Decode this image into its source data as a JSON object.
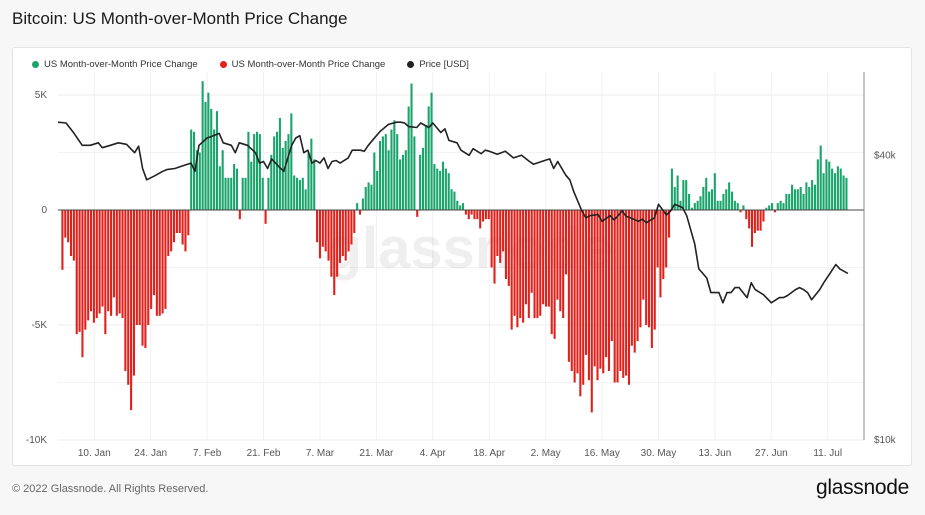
{
  "header": {
    "title": "Bitcoin: US Month-over-Month Price Change"
  },
  "footer": {
    "copyright": "© 2022 Glassnode. All Rights Reserved.",
    "brand": "glassnode"
  },
  "watermark": "glassnode",
  "colors": {
    "positive": "#1aa46c",
    "negative": "#e0201b",
    "price": "#222222"
  },
  "chart_data": {
    "type": "bar",
    "title": "Bitcoin: US Month-over-Month Price Change",
    "legend_position": "top-left",
    "grid": true,
    "legend": [
      {
        "label": "US Month-over-Month Price Change",
        "color": "#1aa46c"
      },
      {
        "label": "US Month-over-Month Price Change",
        "color": "#e0201b"
      },
      {
        "label": "Price [USD]",
        "color": "#222222"
      }
    ],
    "x_ticks": [
      "10. Jan",
      "24. Jan",
      "7. Feb",
      "21. Feb",
      "7. Mar",
      "21. Mar",
      "4. Apr",
      "18. Apr",
      "2. May",
      "16. May",
      "30. May",
      "13. Jun",
      "27. Jun",
      "11. Jul"
    ],
    "x_tick_days": [
      9,
      23,
      37,
      51,
      65,
      79,
      93,
      107,
      121,
      135,
      149,
      163,
      177,
      191
    ],
    "x_range_days": [
      0,
      200
    ],
    "y_left": {
      "range": [
        -10000,
        6000
      ],
      "ticks": [
        5000,
        0,
        -5000,
        -10000
      ],
      "tick_labels": [
        "5K",
        "0",
        "-5K",
        "-10K"
      ]
    },
    "y_right": {
      "range_log": [
        10000,
        60000
      ],
      "ticks": [
        40000,
        10000
      ],
      "tick_labels": [
        "$40k",
        "$10k"
      ]
    },
    "series": [
      {
        "name": "US Month-over-Month Price Change",
        "type": "bar",
        "start_day": 0,
        "values": [
          -2600,
          -1200,
          -1400,
          -2000,
          -2200,
          -5400,
          -5300,
          -6400,
          -5200,
          -4800,
          -4400,
          -4900,
          -4700,
          -4500,
          -4200,
          -5400,
          -4400,
          -4600,
          -3800,
          -4600,
          -4500,
          -4700,
          -7000,
          -7600,
          -8700,
          -7200,
          -5000,
          -5000,
          -5900,
          -6000,
          -5000,
          -4300,
          -3700,
          -4600,
          -4600,
          -4500,
          -4300,
          -2000,
          -1800,
          -1400,
          -1000,
          -1000,
          -1500,
          -1800,
          -1100,
          3500,
          3400,
          2600,
          2500,
          5600,
          4700,
          5100,
          4400,
          3500,
          4300,
          1900,
          2600,
          1400,
          1400,
          1400,
          2000,
          1800,
          -400,
          1400,
          1400,
          3400,
          2100,
          3300,
          3400,
          3300,
          1400,
          -600,
          1400,
          2400,
          3200,
          3400,
          4000,
          2700,
          3000,
          3300,
          4200,
          1500,
          1400,
          1300,
          1400,
          900,
          2500,
          3100,
          2200,
          -1400,
          -2100,
          -1600,
          -1800,
          -2200,
          -2900,
          -3700,
          -2900,
          -2300,
          -2000,
          -2200,
          -1800,
          -1500,
          -1000,
          300,
          -200,
          500,
          1000,
          1200,
          1100,
          2500,
          1700,
          3000,
          3200,
          3300,
          2600,
          3500,
          3900,
          3300,
          2200,
          2400,
          2600,
          4500,
          5500,
          3200,
          -300,
          2400,
          2700,
          3700,
          4500,
          5100,
          2000,
          1800,
          1700,
          2100,
          1800,
          1600,
          900,
          800,
          400,
          200,
          300,
          -200,
          -400,
          -200,
          -400,
          -400,
          -800,
          -500,
          -400,
          -400,
          -2500,
          -3200,
          -2000,
          -2300,
          -1800,
          -3000,
          -3300,
          -5200,
          -4600,
          -5100,
          -4700,
          -4900,
          -4100,
          -4700,
          -3600,
          -4700,
          -4700,
          -4600,
          -4100,
          -4200,
          -4200,
          -5400,
          -5600,
          -3900,
          -4400,
          -4700,
          -2800,
          -6600,
          -7000,
          -7500,
          -7100,
          -8100,
          -7600,
          -6300,
          -7400,
          -8800,
          -6800,
          -7400,
          -6900,
          -7100,
          -6400,
          -7000,
          -5700,
          -7500,
          -7500,
          -7000,
          -7300,
          -7200,
          -7600,
          -5900,
          -6200,
          -5700,
          -5100,
          -3900,
          -5000,
          -5100,
          -6000,
          -5200,
          -2500,
          -3800,
          -3000,
          -2500,
          -1200,
          1800,
          1000,
          1500,
          400,
          1300,
          1300,
          700,
          100,
          300,
          400,
          600,
          1000,
          1400,
          800,
          900,
          1600,
          400,
          400,
          700,
          900,
          1200,
          800,
          400,
          300,
          -100,
          200,
          -400,
          -800,
          -1600,
          -1000,
          -900,
          -900,
          -500,
          100,
          200,
          300,
          -100,
          300,
          400,
          300,
          700,
          700,
          1100,
          900,
          900,
          1000,
          700,
          1200,
          1000,
          1300,
          1100,
          2200,
          2800,
          1600,
          2200,
          2100,
          1800,
          1600,
          1900,
          1800,
          1500,
          1400
        ]
      },
      {
        "name": "Price [USD]",
        "type": "line",
        "points": [
          [
            0,
            47000
          ],
          [
            2,
            46800
          ],
          [
            4,
            44500
          ],
          [
            6,
            42000
          ],
          [
            8,
            42000
          ],
          [
            10,
            42500
          ],
          [
            11,
            41500
          ],
          [
            13,
            42000
          ],
          [
            15,
            42500
          ],
          [
            17,
            42200
          ],
          [
            19,
            40500
          ],
          [
            20,
            41800
          ],
          [
            21,
            37500
          ],
          [
            22,
            35500
          ],
          [
            24,
            36200
          ],
          [
            26,
            37000
          ],
          [
            27,
            37300
          ],
          [
            29,
            37500
          ],
          [
            31,
            38000
          ],
          [
            33,
            38500
          ],
          [
            34,
            37000
          ],
          [
            35,
            42000
          ],
          [
            37,
            43500
          ],
          [
            38,
            43800
          ],
          [
            40,
            44500
          ],
          [
            41,
            42500
          ],
          [
            43,
            42000
          ],
          [
            44,
            40500
          ],
          [
            45,
            42500
          ],
          [
            47,
            42000
          ],
          [
            49,
            40500
          ],
          [
            50,
            38500
          ],
          [
            51,
            38800
          ],
          [
            52,
            37500
          ],
          [
            53,
            39300
          ],
          [
            54,
            38500
          ],
          [
            55,
            37700
          ],
          [
            56,
            37000
          ],
          [
            58,
            42000
          ],
          [
            59,
            43500
          ],
          [
            60,
            44000
          ],
          [
            61,
            40500
          ],
          [
            62,
            41000
          ],
          [
            63,
            38500
          ],
          [
            64,
            39000
          ],
          [
            65,
            38500
          ],
          [
            66,
            39500
          ],
          [
            67,
            37500
          ],
          [
            68,
            38800
          ],
          [
            69,
            39000
          ],
          [
            70,
            38500
          ],
          [
            72,
            39500
          ],
          [
            73,
            41000
          ],
          [
            75,
            41000
          ],
          [
            76,
            40800
          ],
          [
            77,
            42000
          ],
          [
            79,
            44000
          ],
          [
            80,
            45000
          ],
          [
            82,
            46500
          ],
          [
            84,
            47000
          ],
          [
            85,
            47000
          ],
          [
            86,
            46800
          ],
          [
            87,
            46000
          ],
          [
            89,
            45800
          ],
          [
            90,
            46800
          ],
          [
            92,
            45800
          ],
          [
            93,
            46800
          ],
          [
            95,
            44700
          ],
          [
            96,
            45500
          ],
          [
            97,
            43000
          ],
          [
            99,
            42500
          ],
          [
            100,
            41000
          ],
          [
            102,
            40000
          ],
          [
            103,
            41300
          ],
          [
            105,
            40300
          ],
          [
            106,
            41000
          ],
          [
            107,
            40800
          ],
          [
            109,
            40200
          ],
          [
            111,
            40800
          ],
          [
            113,
            39500
          ],
          [
            115,
            40000
          ],
          [
            117,
            38800
          ],
          [
            118,
            38300
          ],
          [
            120,
            38800
          ],
          [
            122,
            39300
          ],
          [
            123,
            37500
          ],
          [
            124,
            38800
          ],
          [
            126,
            36300
          ],
          [
            127,
            35500
          ],
          [
            128,
            33500
          ],
          [
            130,
            30500
          ],
          [
            131,
            29500
          ],
          [
            132,
            29800
          ],
          [
            134,
            30000
          ],
          [
            135,
            29000
          ],
          [
            137,
            29800
          ],
          [
            138,
            29200
          ],
          [
            140,
            30500
          ],
          [
            141,
            29700
          ],
          [
            142,
            29500
          ],
          [
            144,
            29000
          ],
          [
            145,
            29300
          ],
          [
            146,
            28800
          ],
          [
            148,
            29500
          ],
          [
            149,
            31500
          ],
          [
            151,
            29900
          ],
          [
            152,
            30500
          ],
          [
            153,
            31500
          ],
          [
            155,
            31000
          ],
          [
            156,
            29800
          ],
          [
            158,
            26000
          ],
          [
            159,
            23000
          ],
          [
            160,
            22500
          ],
          [
            161,
            22000
          ],
          [
            162,
            20500
          ],
          [
            163,
            20500
          ],
          [
            164,
            20500
          ],
          [
            165,
            19500
          ],
          [
            166,
            20500
          ],
          [
            167,
            20500
          ],
          [
            168,
            21000
          ],
          [
            169,
            21000
          ],
          [
            171,
            20000
          ],
          [
            172,
            21500
          ],
          [
            173,
            20800
          ],
          [
            175,
            20300
          ],
          [
            176,
            19900
          ],
          [
            177,
            19500
          ],
          [
            179,
            20000
          ],
          [
            180,
            20000
          ],
          [
            181,
            20200
          ],
          [
            183,
            20800
          ],
          [
            184,
            21000
          ],
          [
            185,
            20800
          ],
          [
            186,
            20500
          ],
          [
            187,
            19800
          ],
          [
            189,
            20800
          ],
          [
            190,
            21500
          ],
          [
            192,
            22800
          ],
          [
            193,
            23500
          ],
          [
            194,
            23000
          ],
          [
            196,
            22500
          ]
        ]
      }
    ]
  }
}
